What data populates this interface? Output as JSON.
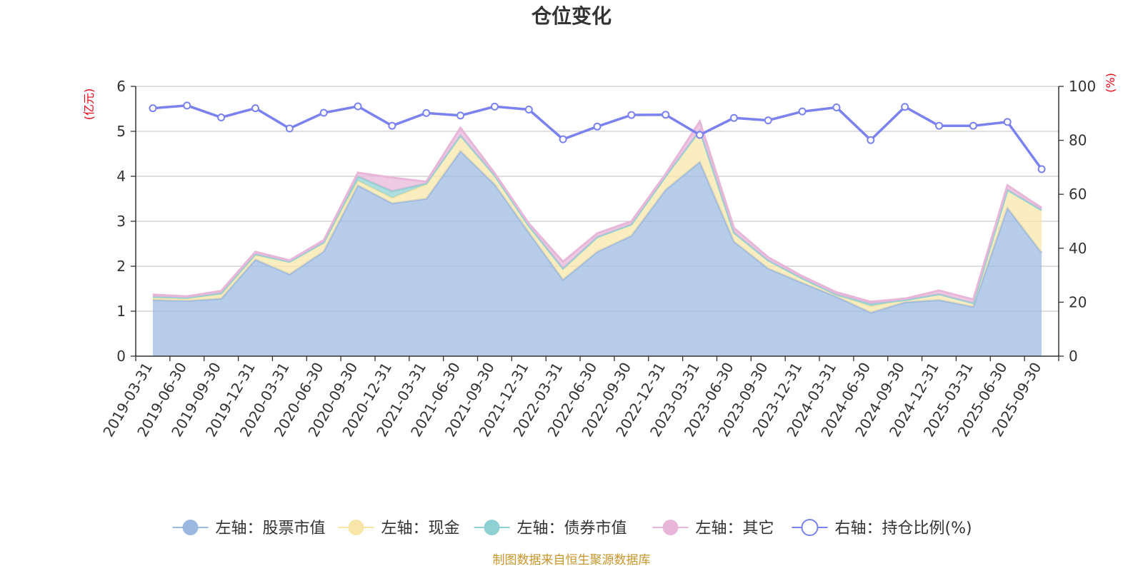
{
  "chart_data": {
    "type": "area",
    "title": "仓位变化",
    "left_axis_unit": "(亿元)",
    "right_axis_unit": "(%)",
    "ylim_left": [
      0,
      6
    ],
    "yticks_left": [
      "0",
      "1",
      "2",
      "3",
      "4",
      "5",
      "6"
    ],
    "ylim_right": [
      0,
      100
    ],
    "yticks_right": [
      "0",
      "20",
      "40",
      "60",
      "80",
      "100"
    ],
    "x": [
      "2019-03-31",
      "2019-06-30",
      "2019-09-30",
      "2019-12-31",
      "2020-03-31",
      "2020-06-30",
      "2020-09-30",
      "2020-12-31",
      "2021-03-31",
      "2021-06-30",
      "2021-09-30",
      "2021-12-31",
      "2022-03-31",
      "2022-06-30",
      "2022-09-30",
      "2022-12-31",
      "2023-03-31",
      "2023-06-30",
      "2023-09-30",
      "2023-12-31",
      "2024-03-31",
      "2024-06-30",
      "2024-09-30",
      "2024-12-31",
      "2025-03-31",
      "2025-06-30",
      "2025-09-30"
    ],
    "series": [
      {
        "name": "左轴：股票市值",
        "axis": "left",
        "color": "#9bb8e0",
        "values": [
          1.25,
          1.23,
          1.28,
          2.15,
          1.82,
          2.33,
          3.8,
          3.4,
          3.5,
          4.56,
          3.82,
          2.75,
          1.7,
          2.32,
          2.68,
          3.7,
          4.32,
          2.55,
          1.95,
          1.63,
          1.32,
          0.97,
          1.2,
          1.25,
          1.1,
          3.3,
          2.3
        ]
      },
      {
        "name": "左轴：现金",
        "axis": "left",
        "color": "#f8e6a8",
        "values": [
          0.05,
          0.05,
          0.1,
          0.1,
          0.28,
          0.2,
          0.1,
          0.12,
          0.32,
          0.35,
          0.2,
          0.15,
          0.25,
          0.33,
          0.25,
          0.3,
          0.7,
          0.2,
          0.18,
          0.1,
          0.05,
          0.14,
          0.05,
          0.13,
          0.08,
          0.4,
          0.95
        ]
      },
      {
        "name": "左轴：债券市值",
        "axis": "left",
        "color": "#8fd1d2",
        "values": [
          0.02,
          0.02,
          0.02,
          0.02,
          0,
          0,
          0.1,
          0.15,
          0.02,
          0,
          0,
          0,
          0,
          0,
          0,
          0,
          0,
          0,
          0,
          0,
          0,
          0.05,
          0,
          0,
          0,
          0,
          0
        ]
      },
      {
        "name": "左轴：其它",
        "axis": "left",
        "color": "#e7b6d9",
        "values": [
          0.05,
          0.03,
          0.05,
          0.05,
          0.03,
          0.05,
          0.08,
          0.3,
          0.04,
          0.17,
          0.05,
          0.05,
          0.15,
          0.08,
          0.07,
          0.05,
          0.2,
          0.1,
          0.07,
          0.05,
          0.05,
          0.05,
          0.03,
          0.08,
          0.08,
          0.1,
          0.05
        ]
      },
      {
        "name": "右轴：持仓比例(%)",
        "axis": "right",
        "color": "#7b82f0",
        "values": [
          91.9,
          92.9,
          88.5,
          91.9,
          84.4,
          90.2,
          92.6,
          85.4,
          90.1,
          89.2,
          92.5,
          91.4,
          80.4,
          85.1,
          89.4,
          89.5,
          82.0,
          88.3,
          87.4,
          90.7,
          92.2,
          80.1,
          92.4,
          85.4,
          85.4,
          86.8,
          69.3
        ]
      }
    ],
    "legend_position": "bottom"
  },
  "footer": "制图数据来自恒生聚源数据库"
}
